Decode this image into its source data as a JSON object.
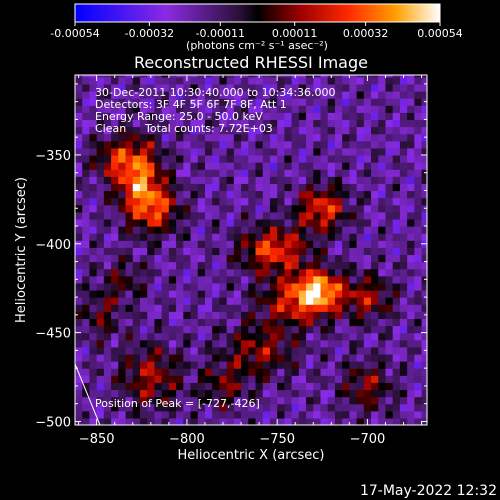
{
  "chart_data": {
    "type": "heatmap",
    "title": "Reconstructed RHESSI Image",
    "xlabel": "Heliocentric X (arcsec)",
    "ylabel": "Heliocentric Y (arcsec)",
    "xlim": [
      -862,
      -667
    ],
    "ylim": [
      -502,
      -305
    ],
    "x_ticks": [
      -850,
      -800,
      -750,
      -700
    ],
    "y_ticks": [
      -350,
      -400,
      -450,
      -500
    ],
    "colorbar": {
      "range": [
        -0.00054,
        0.00054
      ],
      "tick_values": [
        -0.00054,
        -0.00032,
        -0.00011,
        0.00011,
        0.00032,
        0.00054
      ],
      "tick_labels": [
        "-0.00054",
        "-0.00032",
        "-0.00011",
        "0.00011",
        "0.00032",
        "0.00054"
      ],
      "units": "(photons cm⁻² s⁻¹ asec⁻²)"
    },
    "annotations": {
      "time": "30-Dec-2011 10:30:40.000 to 10:34:36.000",
      "detectors": "Detectors: 3F 4F 5F 6F 7F 8F, Att 1",
      "energy": "Energy Range: 25.0 - 50.0 keV",
      "clean": "Clean",
      "counts": "Total counts: 7.72E+03"
    },
    "peak_label": "Position of Peak = [-727,-426]",
    "peak_position": [
      -727,
      -426
    ],
    "sources": [
      {
        "x": -827,
        "y": -360,
        "amp": 0.0005,
        "sx": 9,
        "sy": 14
      },
      {
        "x": -818,
        "y": -380,
        "amp": 0.0004,
        "sx": 10,
        "sy": 10
      },
      {
        "x": -842,
        "y": -352,
        "amp": 0.00025,
        "sx": 8,
        "sy": 8
      },
      {
        "x": -725,
        "y": -380,
        "amp": 0.00042,
        "sx": 10,
        "sy": 9
      },
      {
        "x": -752,
        "y": -403,
        "amp": 0.00044,
        "sx": 13,
        "sy": 9
      },
      {
        "x": -727,
        "y": -426,
        "amp": 0.00054,
        "sx": 9,
        "sy": 8
      },
      {
        "x": -740,
        "y": -432,
        "amp": 0.00035,
        "sx": 14,
        "sy": 10
      },
      {
        "x": -700,
        "y": -430,
        "amp": 0.0003,
        "sx": 10,
        "sy": 9
      },
      {
        "x": -760,
        "y": -460,
        "amp": 0.00028,
        "sx": 14,
        "sy": 11
      },
      {
        "x": -700,
        "y": -480,
        "amp": 0.00026,
        "sx": 10,
        "sy": 10
      },
      {
        "x": -820,
        "y": -475,
        "amp": 0.0003,
        "sx": 12,
        "sy": 13
      },
      {
        "x": -848,
        "y": -440,
        "amp": 0.0002,
        "sx": 8,
        "sy": 10
      },
      {
        "x": -835,
        "y": -420,
        "amp": 0.00018,
        "sx": 9,
        "sy": 9
      },
      {
        "x": -780,
        "y": -480,
        "amp": 0.00022,
        "sx": 9,
        "sy": 9
      }
    ]
  },
  "footer": {
    "timestamp": "17-May-2022 12:32"
  }
}
